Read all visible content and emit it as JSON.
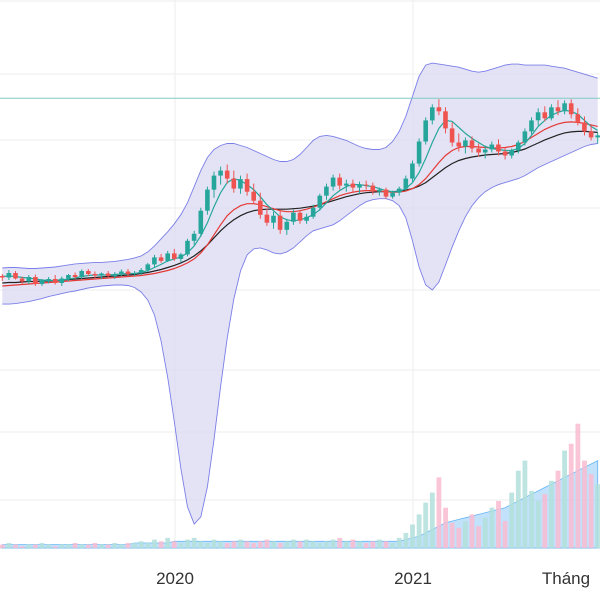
{
  "chart_data": {
    "type": "candlestick",
    "x_tick_labels": [
      "2020",
      "2021",
      "Tháng"
    ],
    "x_range": [
      "2019-03",
      "2022-04"
    ],
    "price_ylim": [
      0,
      100
    ],
    "volume_ylim": [
      0,
      100
    ],
    "grid": true,
    "colors": {
      "up": "#26a69a",
      "down": "#ef5350",
      "up_volume": "#b2dfdb",
      "down_volume": "#f8bbd0",
      "volume_ma_fill": "#90caf9",
      "band_fill": "#d9d9f2",
      "band_line": "#7b7ee8",
      "ma_short": "#26a69a",
      "ma_mid": "#e53935",
      "ma_long": "#222222",
      "h_line": "#80cbc4",
      "grid": "#eeeeee"
    },
    "h_line_value": 86,
    "series": [
      {
        "name": "",
        "kind": "candles",
        "values": [
          [
            50.6,
            51.0,
            49.6,
            50.3
          ],
          [
            50.3,
            51.8,
            49.8,
            51.2
          ],
          [
            51.2,
            51.6,
            49.9,
            50.1
          ],
          [
            50.1,
            50.5,
            48.9,
            49.5
          ],
          [
            49.5,
            50.8,
            49.0,
            50.4
          ],
          [
            50.4,
            50.9,
            48.6,
            49.0
          ],
          [
            49.0,
            50.0,
            48.6,
            49.7
          ],
          [
            49.7,
            50.4,
            49.1,
            50.0
          ],
          [
            50.0,
            50.8,
            48.9,
            49.2
          ],
          [
            49.2,
            50.5,
            48.6,
            50.1
          ],
          [
            50.1,
            51.0,
            49.6,
            50.8
          ],
          [
            50.8,
            51.3,
            50.0,
            50.4
          ],
          [
            50.4,
            51.9,
            50.0,
            51.6
          ],
          [
            51.6,
            52.0,
            50.6,
            51.0
          ],
          [
            51.0,
            51.5,
            50.2,
            50.7
          ],
          [
            50.7,
            51.3,
            50.0,
            51.1
          ],
          [
            51.1,
            51.6,
            50.3,
            50.6
          ],
          [
            50.6,
            51.4,
            50.0,
            51.0
          ],
          [
            51.0,
            51.9,
            50.6,
            51.5
          ],
          [
            51.5,
            52.0,
            50.6,
            51.0
          ],
          [
            51.0,
            51.6,
            50.6,
            51.2
          ],
          [
            51.2,
            52.2,
            50.8,
            51.8
          ],
          [
            51.8,
            53.2,
            51.4,
            52.9
          ],
          [
            52.9,
            54.8,
            52.4,
            54.3
          ],
          [
            54.3,
            55.0,
            53.2,
            53.6
          ],
          [
            53.6,
            55.6,
            53.4,
            55.1
          ],
          [
            55.1,
            56.0,
            53.6,
            54.0
          ],
          [
            54.0,
            55.2,
            53.3,
            54.9
          ],
          [
            54.9,
            58.0,
            54.5,
            57.6
          ],
          [
            57.6,
            59.6,
            56.8,
            59.0
          ],
          [
            59.0,
            64.2,
            58.4,
            63.6
          ],
          [
            63.6,
            68.4,
            62.8,
            67.8
          ],
          [
            67.8,
            71.4,
            66.2,
            70.6
          ],
          [
            70.6,
            72.4,
            68.8,
            71.6
          ],
          [
            71.6,
            72.8,
            69.0,
            70.0
          ],
          [
            70.0,
            71.6,
            67.2,
            68.0
          ],
          [
            68.0,
            70.6,
            67.0,
            69.9
          ],
          [
            69.9,
            71.0,
            66.6,
            67.4
          ],
          [
            67.4,
            69.0,
            65.0,
            65.6
          ],
          [
            65.6,
            67.2,
            62.0,
            62.8
          ],
          [
            62.8,
            64.0,
            60.6,
            61.2
          ],
          [
            61.2,
            63.4,
            60.0,
            62.6
          ],
          [
            62.6,
            63.8,
            59.0,
            59.8
          ],
          [
            59.8,
            62.0,
            58.8,
            61.4
          ],
          [
            61.4,
            63.8,
            60.8,
            63.2
          ],
          [
            63.2,
            63.6,
            61.0,
            61.6
          ],
          [
            61.6,
            63.0,
            61.0,
            62.4
          ],
          [
            62.4,
            64.8,
            62.0,
            64.2
          ],
          [
            64.2,
            67.0,
            63.6,
            66.6
          ],
          [
            66.6,
            69.0,
            65.8,
            68.4
          ],
          [
            68.4,
            70.8,
            67.6,
            70.2
          ],
          [
            70.2,
            71.0,
            67.8,
            68.6
          ],
          [
            68.6,
            69.8,
            67.4,
            69.0
          ],
          [
            69.0,
            69.8,
            67.2,
            68.2
          ],
          [
            68.2,
            69.4,
            67.0,
            68.8
          ],
          [
            68.8,
            69.6,
            67.8,
            68.6
          ],
          [
            68.6,
            69.2,
            66.8,
            67.4
          ],
          [
            67.4,
            68.2,
            66.6,
            67.8
          ],
          [
            67.8,
            68.2,
            66.0,
            66.4
          ],
          [
            66.4,
            67.6,
            66.0,
            67.2
          ],
          [
            67.2,
            68.4,
            66.6,
            68.0
          ],
          [
            68.0,
            70.6,
            67.6,
            70.0
          ],
          [
            70.0,
            73.6,
            69.4,
            73.0
          ],
          [
            73.0,
            78.0,
            72.4,
            77.4
          ],
          [
            77.4,
            82.2,
            76.8,
            81.6
          ],
          [
            81.6,
            84.8,
            80.8,
            84.2
          ],
          [
            84.2,
            85.8,
            82.6,
            83.4
          ],
          [
            83.4,
            84.2,
            79.0,
            80.0
          ],
          [
            80.0,
            81.2,
            76.4,
            77.2
          ],
          [
            77.2,
            79.0,
            75.4,
            76.4
          ],
          [
            76.4,
            78.2,
            75.0,
            77.6
          ],
          [
            77.6,
            78.4,
            75.2,
            76.0
          ],
          [
            76.0,
            77.0,
            74.4,
            75.2
          ],
          [
            75.2,
            76.6,
            74.0,
            75.8
          ],
          [
            75.8,
            77.4,
            75.2,
            76.8
          ],
          [
            76.8,
            77.8,
            74.6,
            75.4
          ],
          [
            75.4,
            76.2,
            73.8,
            74.6
          ],
          [
            74.6,
            76.0,
            74.0,
            75.6
          ],
          [
            75.6,
            77.6,
            75.0,
            77.2
          ],
          [
            77.2,
            80.0,
            76.6,
            79.4
          ],
          [
            79.4,
            82.2,
            78.8,
            81.6
          ],
          [
            81.6,
            84.0,
            80.6,
            83.2
          ],
          [
            83.2,
            84.4,
            81.4,
            82.0
          ],
          [
            82.0,
            84.8,
            81.6,
            84.2
          ],
          [
            84.2,
            85.6,
            82.6,
            83.4
          ],
          [
            83.4,
            85.6,
            82.8,
            85.0
          ],
          [
            85.0,
            85.8,
            82.0,
            82.8
          ],
          [
            82.8,
            84.0,
            80.6,
            81.2
          ],
          [
            81.2,
            82.4,
            78.6,
            79.4
          ],
          [
            79.4,
            80.6,
            77.6,
            78.2
          ],
          [
            78.2,
            79.2,
            77.0,
            78.6
          ]
        ]
      },
      {
        "name": "",
        "kind": "ma_short",
        "values": [
          50.5,
          50.6,
          50.5,
          50.3,
          50.2,
          50.0,
          49.8,
          49.7,
          49.7,
          49.8,
          50.0,
          50.2,
          50.5,
          50.7,
          50.8,
          50.8,
          50.8,
          50.9,
          51.0,
          51.1,
          51.1,
          51.3,
          51.7,
          52.3,
          52.9,
          53.6,
          54.0,
          54.4,
          55.2,
          56.6,
          58.6,
          61.2,
          64.4,
          67.2,
          69.2,
          70.0,
          69.6,
          68.8,
          67.8,
          66.4,
          64.8,
          63.6,
          62.4,
          61.8,
          61.6,
          61.8,
          62.2,
          62.8,
          63.8,
          65.2,
          66.6,
          67.6,
          68.4,
          68.8,
          68.8,
          68.6,
          68.4,
          68.0,
          67.6,
          67.4,
          67.4,
          68.0,
          69.2,
          71.2,
          74.0,
          77.2,
          80.0,
          81.6,
          81.4,
          80.2,
          79.0,
          78.0,
          77.2,
          76.4,
          76.0,
          75.8,
          75.6,
          75.6,
          76.0,
          77.0,
          78.6,
          80.4,
          81.6,
          82.6,
          83.2,
          83.6,
          83.4,
          82.8,
          81.6,
          80.4,
          79.6
        ]
      },
      {
        "name": "",
        "kind": "ma_mid",
        "values": [
          48.6,
          48.7,
          48.8,
          48.9,
          49.0,
          49.1,
          49.2,
          49.3,
          49.4,
          49.5,
          49.6,
          49.7,
          49.8,
          49.9,
          50.0,
          50.1,
          50.2,
          50.3,
          50.4,
          50.5,
          50.6,
          50.7,
          50.9,
          51.1,
          51.4,
          51.7,
          52.1,
          52.6,
          53.2,
          54.0,
          55.2,
          56.8,
          58.8,
          60.8,
          62.6,
          63.8,
          64.6,
          65.0,
          65.0,
          64.8,
          64.4,
          64.0,
          63.6,
          63.4,
          63.4,
          63.6,
          63.9,
          64.3,
          64.8,
          65.4,
          66.0,
          66.6,
          67.0,
          67.3,
          67.5,
          67.6,
          67.6,
          67.5,
          67.4,
          67.3,
          67.3,
          67.5,
          68.0,
          68.8,
          70.0,
          71.6,
          73.2,
          74.6,
          75.6,
          76.2,
          76.4,
          76.4,
          76.3,
          76.2,
          76.1,
          76.1,
          76.2,
          76.4,
          76.8,
          77.4,
          78.2,
          79.0,
          79.8,
          80.4,
          80.9,
          81.2,
          81.3,
          81.2,
          81.0,
          80.7,
          80.4
        ]
      },
      {
        "name": "",
        "kind": "ma_long",
        "values": [
          49.2,
          49.3,
          49.3,
          49.4,
          49.5,
          49.5,
          49.6,
          49.6,
          49.7,
          49.8,
          49.9,
          50.0,
          50.1,
          50.2,
          50.3,
          50.4,
          50.5,
          50.6,
          50.7,
          50.8,
          50.9,
          51.1,
          51.3,
          51.6,
          51.9,
          52.3,
          52.7,
          53.2,
          53.8,
          54.6,
          55.6,
          56.8,
          58.2,
          59.6,
          60.8,
          61.8,
          62.6,
          63.2,
          63.6,
          63.8,
          63.9,
          63.9,
          63.9,
          63.9,
          64.0,
          64.1,
          64.3,
          64.5,
          64.8,
          65.2,
          65.6,
          66.0,
          66.4,
          66.7,
          67.0,
          67.2,
          67.3,
          67.4,
          67.4,
          67.4,
          67.5,
          67.7,
          68.0,
          68.5,
          69.2,
          70.2,
          71.2,
          72.2,
          73.0,
          73.6,
          74.0,
          74.3,
          74.5,
          74.7,
          74.8,
          74.9,
          75.0,
          75.2,
          75.5,
          75.9,
          76.5,
          77.1,
          77.7,
          78.2,
          78.7,
          79.1,
          79.3,
          79.4,
          79.4,
          79.3,
          79.2
        ]
      },
      {
        "name": "",
        "kind": "band_upper",
        "values": [
          52.2,
          52.3,
          52.3,
          52.2,
          52.1,
          52.1,
          52.2,
          52.3,
          52.4,
          52.6,
          52.8,
          53.0,
          53.1,
          53.2,
          53.3,
          53.3,
          53.4,
          53.5,
          53.7,
          53.9,
          54.2,
          54.6,
          55.4,
          56.6,
          58.0,
          59.4,
          61.0,
          62.8,
          65.2,
          68.4,
          71.6,
          74.2,
          75.8,
          76.6,
          77.0,
          77.0,
          76.6,
          76.2,
          75.6,
          75.0,
          74.4,
          73.8,
          73.4,
          73.4,
          73.8,
          74.8,
          76.2,
          77.6,
          78.4,
          78.6,
          78.4,
          78.0,
          77.6,
          77.0,
          76.4,
          76.0,
          75.8,
          75.8,
          76.2,
          77.4,
          79.4,
          82.4,
          86.4,
          90.4,
          92.6,
          93.0,
          92.8,
          92.6,
          92.4,
          92.2,
          91.8,
          91.4,
          91.2,
          91.4,
          91.8,
          92.2,
          92.6,
          92.8,
          92.8,
          92.6,
          92.6,
          92.6,
          92.6,
          92.4,
          92.2,
          92.0,
          91.6,
          91.2,
          90.8,
          90.4,
          90.0
        ]
      },
      {
        "name": "",
        "kind": "band_lower",
        "values": [
          45.0,
          45.0,
          45.1,
          45.3,
          45.5,
          45.8,
          46.1,
          46.5,
          46.8,
          47.1,
          47.4,
          47.6,
          47.9,
          48.2,
          48.4,
          48.6,
          48.7,
          48.8,
          48.8,
          48.7,
          48.3,
          47.4,
          45.8,
          42.8,
          37.6,
          30.4,
          21.6,
          12.2,
          4.6,
          1.2,
          2.6,
          8.6,
          18.0,
          28.6,
          38.2,
          46.0,
          51.6,
          54.8,
          56.0,
          56.2,
          55.8,
          55.2,
          55.0,
          55.4,
          56.2,
          57.4,
          58.6,
          59.6,
          60.0,
          60.4,
          60.8,
          61.6,
          62.6,
          63.6,
          64.6,
          65.4,
          65.8,
          66.0,
          66.0,
          65.6,
          64.6,
          62.2,
          57.6,
          52.4,
          48.8,
          47.8,
          49.4,
          52.8,
          56.4,
          59.6,
          62.4,
          64.6,
          66.2,
          67.4,
          68.2,
          68.8,
          69.2,
          69.6,
          70.0,
          70.6,
          71.4,
          72.2,
          72.8,
          73.4,
          74.0,
          74.6,
          75.2,
          75.8,
          76.4,
          76.8,
          77.0
        ]
      },
      {
        "name": "",
        "kind": "volume",
        "values": [
          2,
          3,
          2,
          1,
          2,
          2,
          3,
          2,
          1,
          2,
          2,
          3,
          2,
          2,
          3,
          2,
          2,
          3,
          2,
          3,
          3,
          4,
          3,
          5,
          4,
          6,
          4,
          3,
          5,
          6,
          4,
          3,
          5,
          4,
          3,
          4,
          5,
          4,
          3,
          4,
          5,
          4,
          3,
          4,
          5,
          4,
          5,
          4,
          3,
          4,
          5,
          6,
          4,
          5,
          4,
          3,
          4,
          5,
          4,
          3,
          6,
          9,
          14,
          20,
          27,
          33,
          42,
          24,
          15,
          12,
          16,
          20,
          13,
          18,
          24,
          28,
          16,
          33,
          46,
          52,
          34,
          28,
          32,
          40,
          46,
          58,
          62,
          74,
          52,
          44,
          38
        ]
      },
      {
        "name": "",
        "kind": "volume_ma",
        "values": [
          2,
          2,
          2,
          2,
          2,
          2,
          2,
          2,
          2,
          2,
          2,
          2,
          2,
          2,
          2,
          2,
          2,
          2,
          2,
          2,
          3,
          3,
          3,
          3,
          3,
          3,
          4,
          4,
          4,
          4,
          4,
          4,
          4,
          4,
          4,
          4,
          4,
          4,
          4,
          4,
          4,
          4,
          4,
          4,
          4,
          4,
          4,
          4,
          4,
          4,
          4,
          4,
          4,
          4,
          4,
          4,
          4,
          4,
          4,
          4,
          4,
          5,
          6,
          7,
          9,
          11,
          13,
          15,
          16,
          17,
          18,
          19,
          20,
          21,
          22,
          23,
          24,
          26,
          28,
          30,
          32,
          34,
          36,
          38,
          40,
          42,
          44,
          46,
          48,
          50,
          52
        ]
      }
    ]
  }
}
